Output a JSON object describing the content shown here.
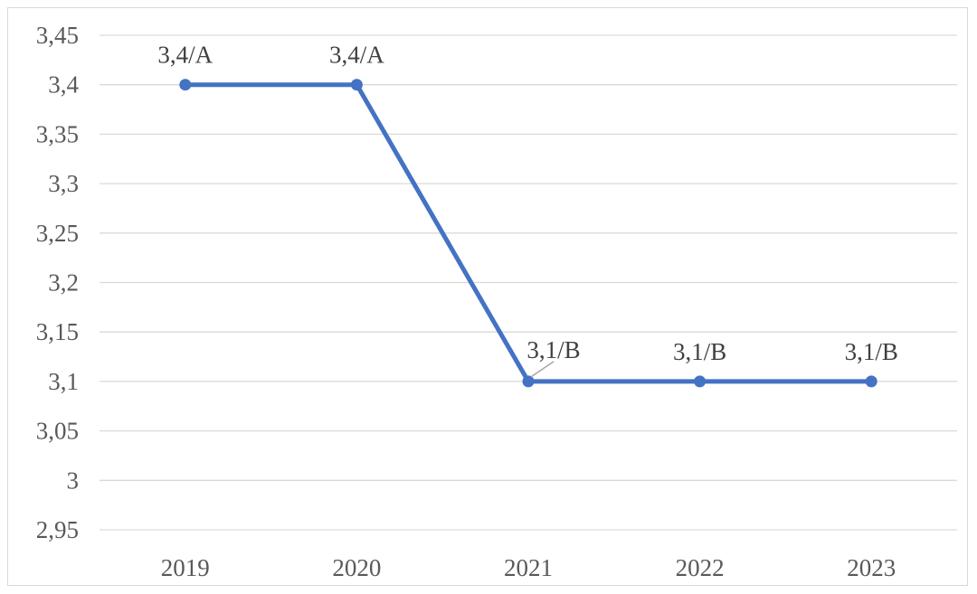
{
  "chart_data": {
    "type": "line",
    "categories": [
      "2019",
      "2020",
      "2021",
      "2022",
      "2023"
    ],
    "series": [
      {
        "values": [
          3.4,
          3.4,
          3.1,
          3.1,
          3.1
        ],
        "data_labels": [
          "3,4/A",
          "3,4/A",
          "3,1/B",
          "3,1/B",
          "3,1/B"
        ]
      }
    ],
    "ylim": [
      2.95,
      3.45
    ],
    "yticks": [
      3.45,
      3.4,
      3.35,
      3.3,
      3.25,
      3.2,
      3.15,
      3.1,
      3.05,
      3,
      2.95
    ],
    "ytick_labels": [
      "3,45",
      "3,4",
      "3,35",
      "3,3",
      "3,25",
      "3,2",
      "3,15",
      "3,1",
      "3,05",
      "3",
      "2,95"
    ],
    "title": "",
    "xlabel": "",
    "ylabel": "",
    "grid": "horizontal",
    "legend": "none",
    "colors": {
      "line": "#4472c4",
      "grid": "#d9d9d9",
      "axis_text": "#595959",
      "label_text": "#404040",
      "leader_line": "#a6a6a6"
    }
  }
}
